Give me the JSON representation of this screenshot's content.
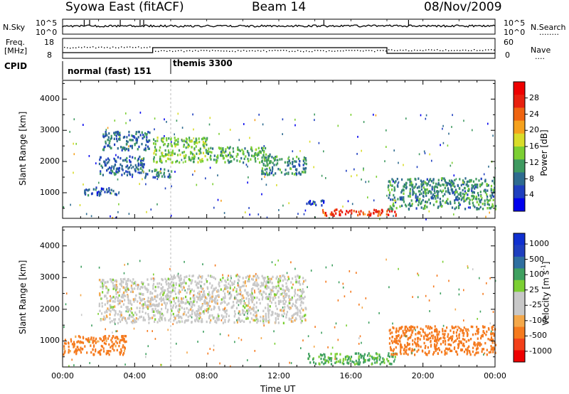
{
  "header": {
    "station": "Syowa East (fitACF)",
    "beam": "Beam 14",
    "date": "08/Nov/2009"
  },
  "labels": {
    "nsky": "N.Sky",
    "nsearch": "N.Search",
    "nsearch_dots": "........",
    "freq": "Freq.",
    "freq_unit": "[MHz]",
    "nave": "Nave",
    "nave_dots": "....",
    "cpid": "CPID",
    "slant_range": "Slant Range [km]",
    "power_title": "Power [dB]",
    "velocity_title": "Velocity [m s",
    "velocity_exp": "-1",
    "velocity_close": "]",
    "time_axis": "Time UT"
  },
  "noise_panel": {
    "left_ticks": [
      "10^5",
      "10^0"
    ],
    "right_ticks": [
      "10^5",
      "10^0"
    ]
  },
  "freq_panel": {
    "left_ticks": [
      "18",
      "8"
    ],
    "right_ticks": [
      "60",
      "0"
    ]
  },
  "cpid_labels": [
    {
      "text": "normal (fast) 151",
      "start_h": 0
    },
    {
      "text": "themis 3300",
      "start_h": 6
    }
  ],
  "colors": {
    "power_scale": [
      "#0000ee",
      "#1f3fbf",
      "#2e6b8f",
      "#3f9a60",
      "#7ccf33",
      "#d9dc2a",
      "#f5a11d",
      "#ef6411",
      "#e8200e",
      "#ee0000"
    ],
    "velocity_scale": [
      "#ee0000",
      "#f3401a",
      "#f57a1e",
      "#f4a84a",
      "#c8c8c8",
      "#c8c8c8",
      "#7ccf33",
      "#3fa060",
      "#2f6fa0",
      "#1f3fbf",
      "#1030d0"
    ]
  },
  "chart_data": [
    {
      "type": "heatmap",
      "title": "Power [dB]",
      "xlabel": "Time UT",
      "ylabel": "Slant Range [km]",
      "xlim": [
        "00:00",
        "24:00"
      ],
      "ylim": [
        180,
        4600
      ],
      "x_ticks": [
        "00:00",
        "04:00",
        "08:00",
        "12:00",
        "16:00",
        "20:00",
        "00:00"
      ],
      "y_ticks": [
        "1000",
        "2000",
        "3000",
        "4000"
      ],
      "colorbar_ticks": [
        "4",
        "8",
        "12",
        "16",
        "20",
        "24",
        "28"
      ],
      "colorbar_range": [
        0,
        32
      ],
      "regions": [
        {
          "t0": 1.0,
          "t1": 3.0,
          "r0": 950,
          "r1": 1200,
          "value": 6
        },
        {
          "t0": 2.0,
          "t1": 4.5,
          "r0": 1600,
          "r1": 2200,
          "value": 7
        },
        {
          "t0": 2.2,
          "t1": 4.8,
          "r0": 2400,
          "r1": 3000,
          "value": 8
        },
        {
          "t0": 4.5,
          "t1": 6.0,
          "r0": 1500,
          "r1": 1800,
          "value": 9
        },
        {
          "t0": 5.0,
          "t1": 8.0,
          "r0": 2000,
          "r1": 2800,
          "value": 14
        },
        {
          "t0": 8.0,
          "t1": 11.5,
          "r0": 2000,
          "r1": 2500,
          "value": 12
        },
        {
          "t0": 11.0,
          "t1": 13.5,
          "r0": 1600,
          "r1": 2200,
          "value": 10
        },
        {
          "t0": 13.5,
          "t1": 14.5,
          "r0": 600,
          "r1": 800,
          "value": 6
        },
        {
          "t0": 14.3,
          "t1": 18.5,
          "r0": 300,
          "r1": 500,
          "value": 26
        },
        {
          "t0": 18.0,
          "t1": 24.0,
          "r0": 500,
          "r1": 1500,
          "value": 10
        }
      ]
    },
    {
      "type": "heatmap",
      "title": "Velocity [m s-1]",
      "xlabel": "Time UT",
      "ylabel": "Slant Range [km]",
      "xlim": [
        "00:00",
        "24:00"
      ],
      "ylim": [
        180,
        4600
      ],
      "x_ticks": [
        "00:00",
        "04:00",
        "08:00",
        "12:00",
        "16:00",
        "20:00",
        "00:00"
      ],
      "y_ticks": [
        "1000",
        "2000",
        "3000",
        "4000"
      ],
      "colorbar_ticks": [
        "1000",
        "500",
        "100",
        "25",
        "-25",
        "-100",
        "-500",
        "-1000"
      ],
      "regions": [
        {
          "t0": 0.0,
          "t1": 3.5,
          "r0": 600,
          "r1": 1200,
          "value": -200
        },
        {
          "t0": 2.0,
          "t1": 6.0,
          "r0": 1600,
          "r1": 3000,
          "value": 0
        },
        {
          "t0": 6.0,
          "t1": 13.5,
          "r0": 1600,
          "r1": 3100,
          "value": 0
        },
        {
          "t0": 13.5,
          "t1": 18.5,
          "r0": 300,
          "r1": 650,
          "value": 150
        },
        {
          "t0": 18.0,
          "t1": 24.0,
          "r0": 600,
          "r1": 1500,
          "value": -300
        }
      ]
    }
  ]
}
